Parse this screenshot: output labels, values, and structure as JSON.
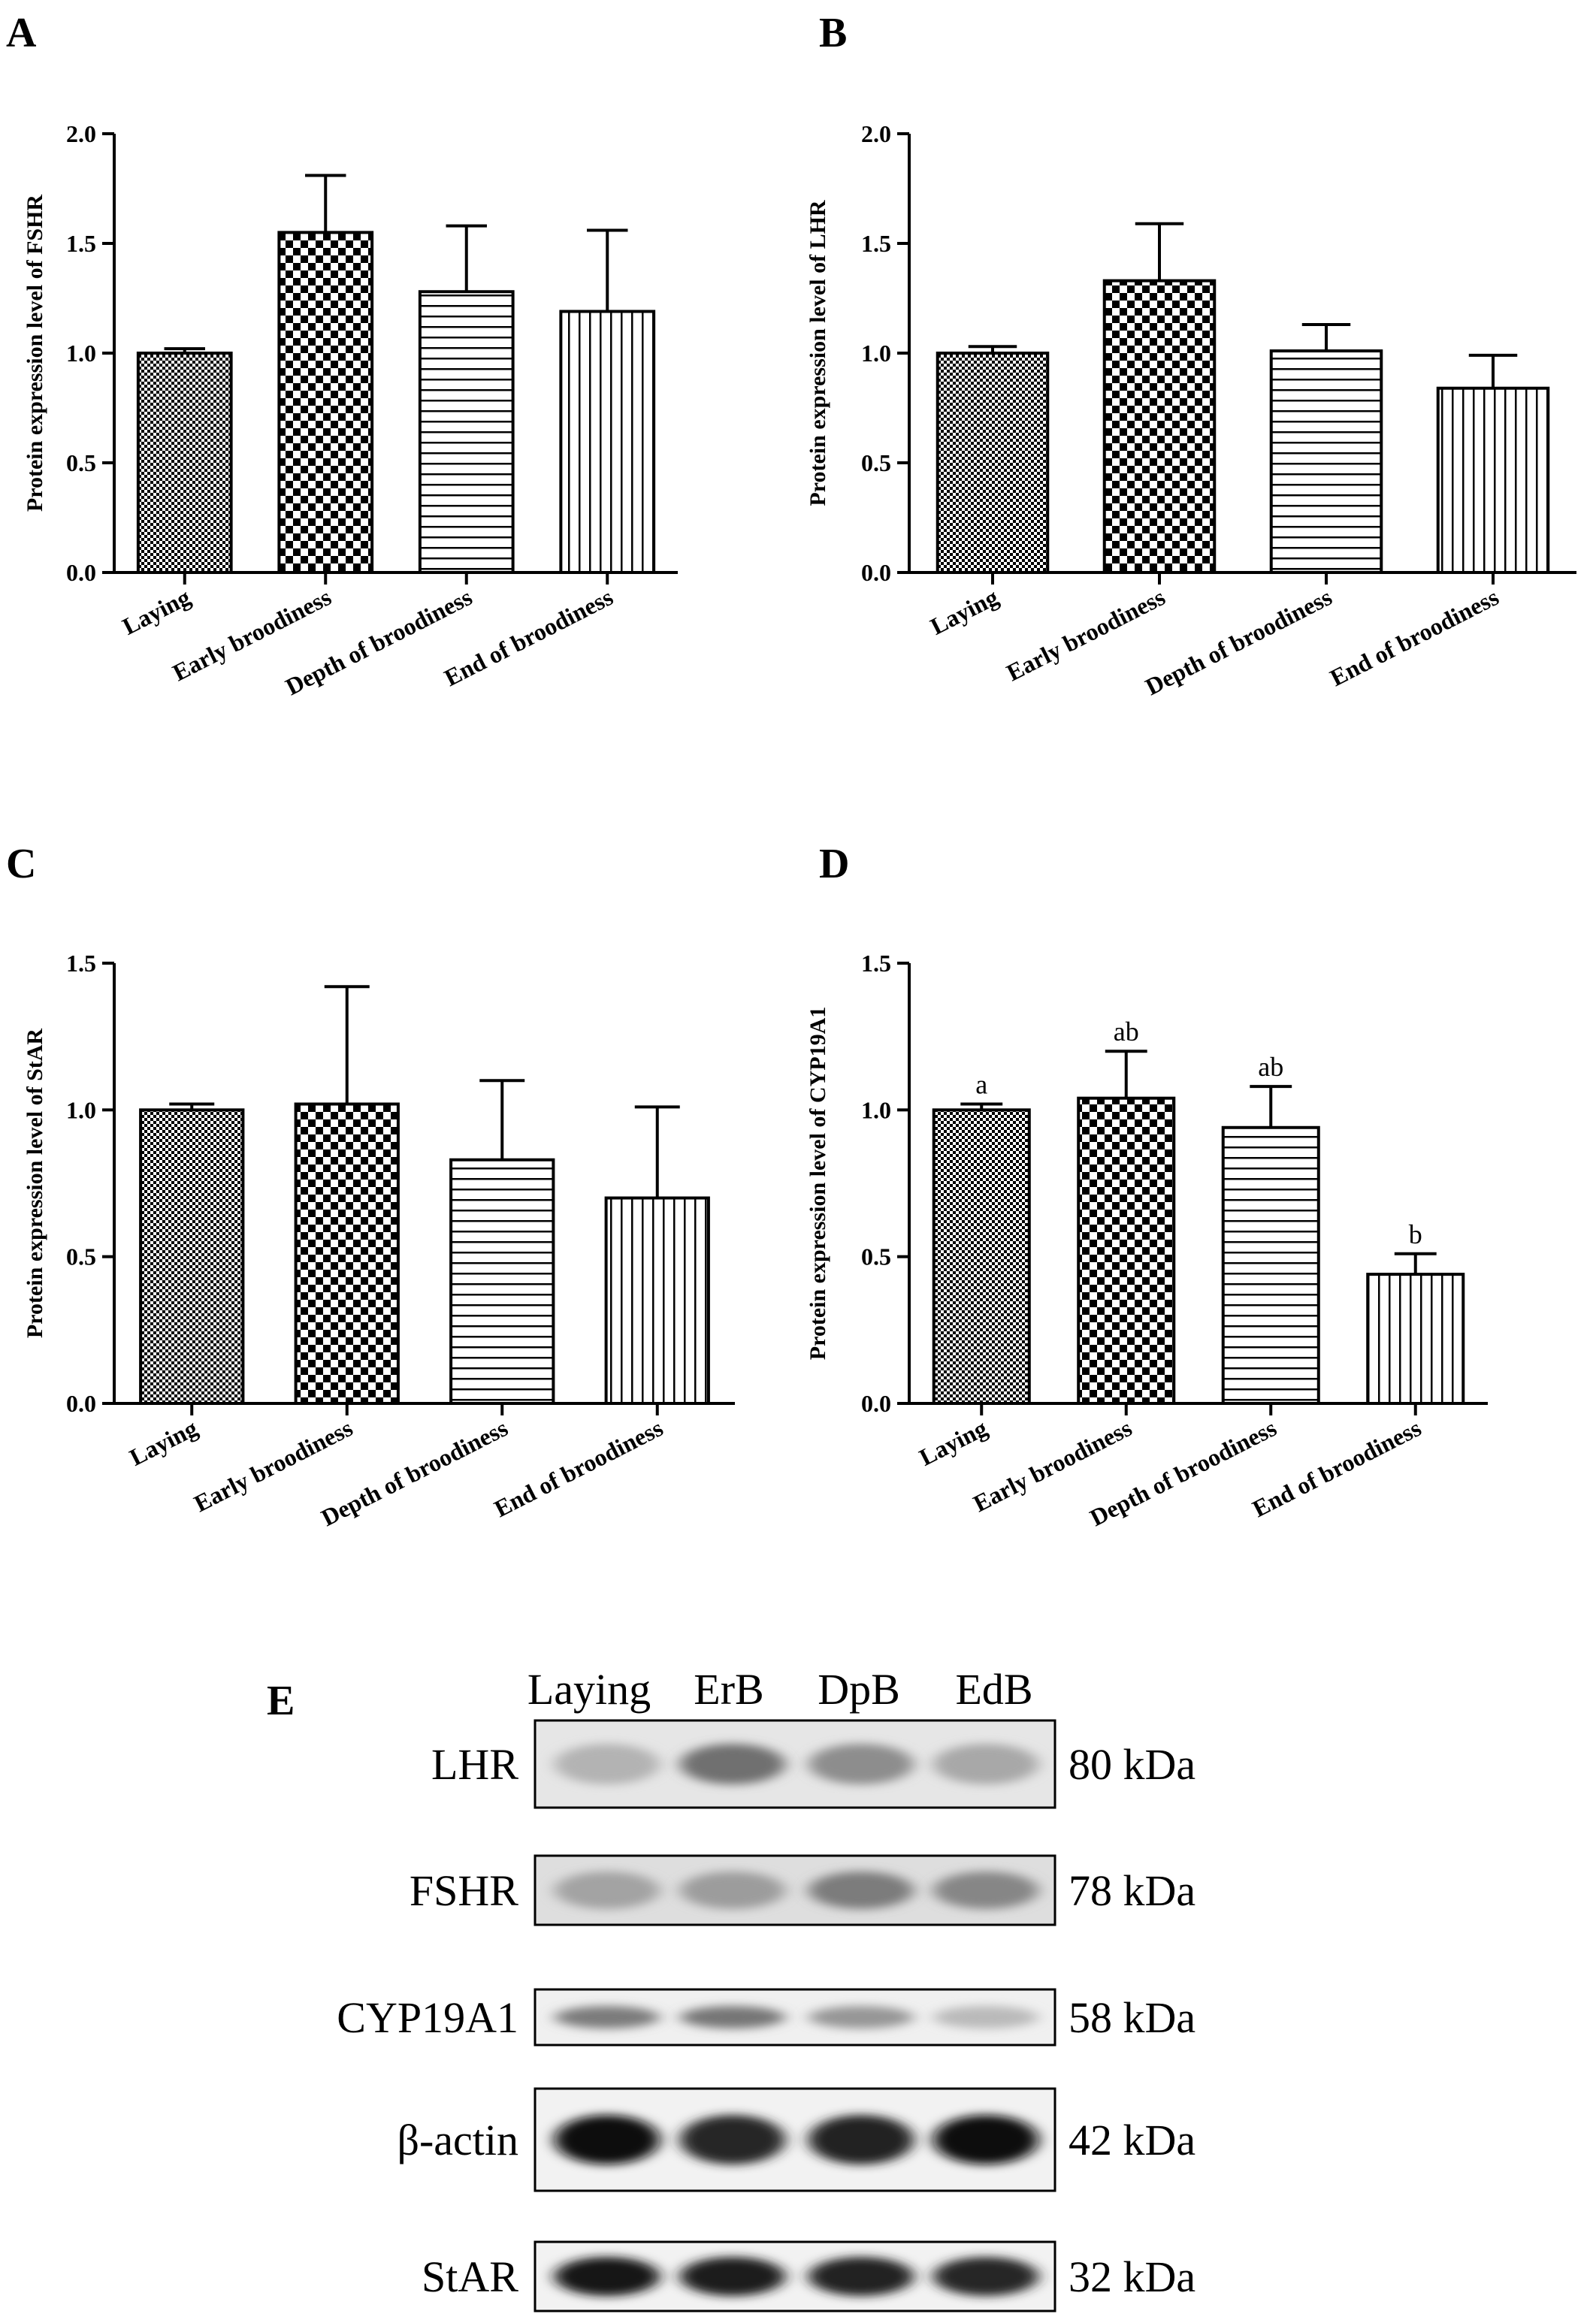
{
  "figure": {
    "categories": [
      "Laying",
      "Early broodiness",
      "Depth of broodiness",
      "End of broodiness"
    ]
  },
  "chart_data": [
    {
      "panel": "A",
      "type": "bar",
      "title": "",
      "xlabel": "",
      "ylabel": "Protein expression level of FSHR",
      "categories": [
        "Laying",
        "Early broodiness",
        "Depth of broodiness",
        "End of broodiness"
      ],
      "values": [
        1.0,
        1.55,
        1.28,
        1.19
      ],
      "errors": [
        0.02,
        0.26,
        0.3,
        0.37
      ],
      "ylim": [
        0,
        2.0
      ],
      "yticks": [
        "0.0",
        "0.5",
        "1.0",
        "1.5",
        "2.0"
      ],
      "significance": []
    },
    {
      "panel": "B",
      "type": "bar",
      "title": "",
      "xlabel": "",
      "ylabel": "Protein expression level of LHR",
      "categories": [
        "Laying",
        "Early broodiness",
        "Depth of broodiness",
        "End of broodiness"
      ],
      "values": [
        1.0,
        1.33,
        1.01,
        0.84
      ],
      "errors": [
        0.03,
        0.26,
        0.12,
        0.15
      ],
      "ylim": [
        0,
        2.0
      ],
      "yticks": [
        "0.0",
        "0.5",
        "1.0",
        "1.5",
        "2.0"
      ],
      "significance": []
    },
    {
      "panel": "C",
      "type": "bar",
      "title": "",
      "xlabel": "",
      "ylabel": "Protein expression level of StAR",
      "categories": [
        "Laying",
        "Early broodiness",
        "Depth of broodiness",
        "End of broodiness"
      ],
      "values": [
        1.0,
        1.02,
        0.83,
        0.7
      ],
      "errors": [
        0.02,
        0.4,
        0.27,
        0.31
      ],
      "ylim": [
        0,
        1.5
      ],
      "yticks": [
        "0.0",
        "0.5",
        "1.0",
        "1.5"
      ],
      "significance": []
    },
    {
      "panel": "D",
      "type": "bar",
      "title": "",
      "xlabel": "",
      "ylabel": "Protein expression level of CYP19A1",
      "categories": [
        "Laying",
        "Early broodiness",
        "Depth of broodiness",
        "End of broodiness"
      ],
      "values": [
        1.0,
        1.04,
        0.94,
        0.44
      ],
      "errors": [
        0.02,
        0.16,
        0.14,
        0.07
      ],
      "ylim": [
        0,
        1.5
      ],
      "yticks": [
        "0.0",
        "0.5",
        "1.0",
        "1.5"
      ],
      "significance": [
        "a",
        "ab",
        "ab",
        "b"
      ]
    }
  ],
  "blot": {
    "panel": "E",
    "lanes": [
      "Laying",
      "ErB",
      "DpB",
      "EdB"
    ],
    "rows": [
      {
        "protein": "LHR",
        "size": "80 kDa",
        "intensity": [
          0.25,
          0.55,
          0.42,
          0.3
        ],
        "background": 0.1
      },
      {
        "protein": "FSHR",
        "size": "78 kDa",
        "intensity": [
          0.32,
          0.35,
          0.5,
          0.45
        ],
        "background": 0.13
      },
      {
        "protein": "CYP19A1",
        "size": "58 kDa",
        "intensity": [
          0.5,
          0.52,
          0.38,
          0.22
        ],
        "background": 0.06
      },
      {
        "protein": "β-actin",
        "size": "42 kDa",
        "intensity": [
          1.0,
          0.88,
          0.9,
          1.0
        ],
        "background": 0.05
      },
      {
        "protein": "StAR",
        "size": "32 kDa",
        "intensity": [
          0.95,
          0.92,
          0.9,
          0.88
        ],
        "background": 0.05
      }
    ]
  },
  "colors": {
    "axis": "#000000",
    "text": "#000000",
    "bar_stroke": "#000000",
    "background": "#ffffff"
  }
}
